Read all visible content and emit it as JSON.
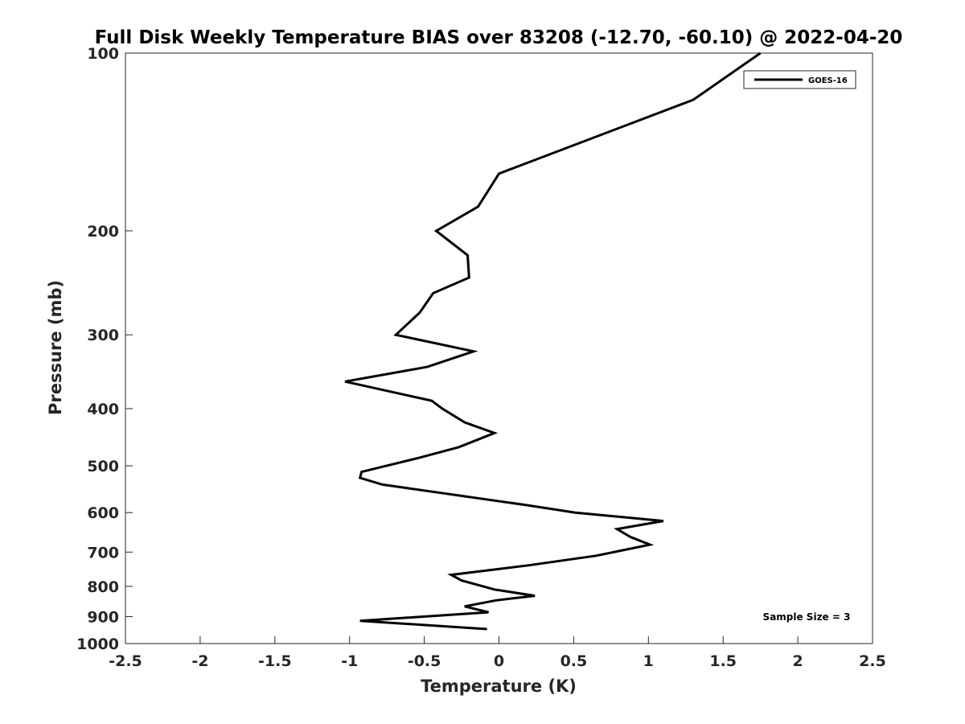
{
  "chart_data": {
    "type": "line",
    "title": "Full Disk Weekly Temperature BIAS over 83208 (-12.70, -60.10) @ 2022-04-20",
    "xlabel": "Temperature (K)",
    "ylabel": "Pressure (mb)",
    "xlim": [
      -2.5,
      2.5
    ],
    "ylim": [
      100,
      1000
    ],
    "y_scale": "log",
    "y_reversed": true,
    "xticks": [
      "-2.5",
      "-2",
      "-1.5",
      "-1",
      "-0.5",
      "0",
      "0.5",
      "1",
      "1.5",
      "2",
      "2.5"
    ],
    "yticks": [
      "100",
      "200",
      "300",
      "400",
      "500",
      "600",
      "700",
      "800",
      "900",
      "1000"
    ],
    "grid": false,
    "legend_position": "top-right",
    "series": [
      {
        "name": "GOES-16",
        "color": "#000000",
        "x": [
          1.75,
          1.3,
          0,
          -0.14,
          -0.42,
          -0.21,
          -0.2,
          -0.44,
          -0.53,
          -0.69,
          -0.17,
          -0.48,
          -1.03,
          -0.45,
          -0.38,
          -0.23,
          -0.03,
          -0.27,
          -0.54,
          -0.92,
          -0.93,
          -0.78,
          0.17,
          0.51,
          1.1,
          0.79,
          0.88,
          1.01,
          0.65,
          0.2,
          -0.32,
          -0.25,
          -0.03,
          0.24,
          -0.02,
          -0.23,
          -0.07,
          -0.93,
          -0.08
        ],
        "y": [
          100,
          120,
          160,
          182,
          200,
          220,
          240,
          255,
          275,
          300,
          320,
          340,
          360,
          388,
          400,
          422,
          440,
          465,
          485,
          512,
          524,
          538,
          582,
          600,
          620,
          640,
          660,
          680,
          710,
          737,
          765,
          782,
          810,
          830,
          845,
          865,
          885,
          915,
          945
        ]
      }
    ],
    "annotations": [
      "Sample Size = 3"
    ]
  }
}
